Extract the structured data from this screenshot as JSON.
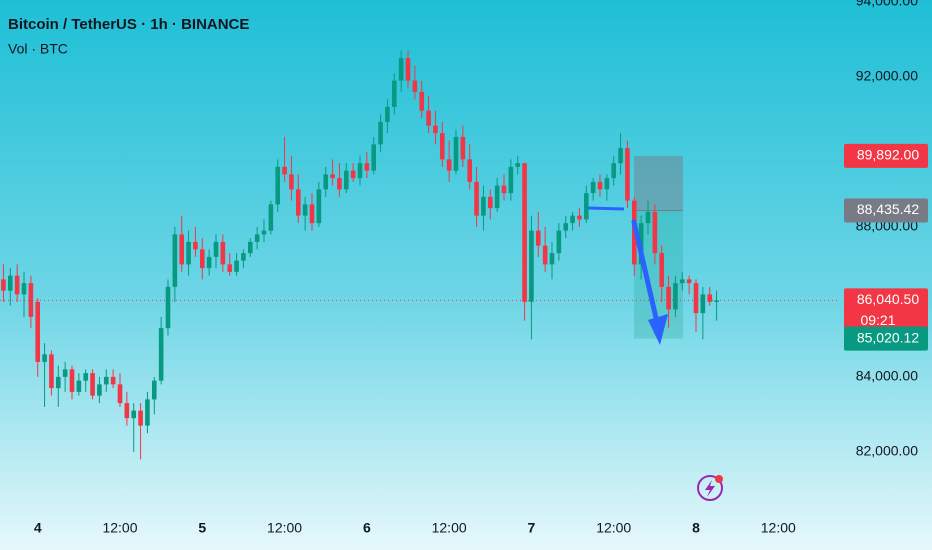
{
  "chart_data": {
    "type": "candlestick",
    "title": "Bitcoin / TetherUS · 1h · BINANCE",
    "subtitle": "Vol · BTC",
    "up_color": "#089981",
    "down_color": "#f23645",
    "xlim": [
      -5.5,
      117
    ],
    "xticks": [
      {
        "value": 0,
        "label": "4"
      },
      {
        "value": 12,
        "label": "12:00"
      },
      {
        "value": 24,
        "label": "5"
      },
      {
        "value": 36,
        "label": "12:00"
      },
      {
        "value": 48,
        "label": "6"
      },
      {
        "value": 60,
        "label": "12:00"
      },
      {
        "value": 72,
        "label": "7"
      },
      {
        "value": 84,
        "label": "12:00"
      },
      {
        "value": 96,
        "label": "8"
      },
      {
        "value": 108,
        "label": "12:00"
      }
    ],
    "ylim": [
      80450,
      94050
    ],
    "yticks": [
      {
        "value": 94000,
        "label": "94,000.00"
      },
      {
        "value": 92000,
        "label": "92,000.00"
      },
      {
        "value": 88000,
        "label": "88,000.00"
      },
      {
        "value": 84000,
        "label": "84,000.00"
      },
      {
        "value": 82000,
        "label": "82,000.00"
      }
    ],
    "price_labels": [
      {
        "value": 89892,
        "label": "89,892.00",
        "color": "#f23645"
      },
      {
        "value": 88435.42,
        "label": "88,435.42",
        "color": "#787b86"
      },
      {
        "value": 86040.5,
        "label": "86,040.50",
        "color": "#f23645"
      },
      {
        "value": 85020.12,
        "label": "85,020.12",
        "color": "#089981"
      }
    ],
    "countdown": "09:21",
    "x": [
      -5,
      -4,
      -3,
      -2,
      -1,
      0,
      1,
      2,
      3,
      4,
      5,
      6,
      7,
      8,
      9,
      10,
      11,
      12,
      13,
      14,
      15,
      16,
      17,
      18,
      19,
      20,
      21,
      22,
      23,
      24,
      25,
      26,
      27,
      28,
      29,
      30,
      31,
      32,
      33,
      34,
      35,
      36,
      37,
      38,
      39,
      40,
      41,
      42,
      43,
      44,
      45,
      46,
      47,
      48,
      49,
      50,
      51,
      52,
      53,
      54,
      55,
      56,
      57,
      58,
      59,
      60,
      61,
      62,
      63,
      64,
      65,
      66,
      67,
      68,
      69,
      70,
      71,
      72,
      73,
      74,
      75,
      76,
      77,
      78,
      79,
      80,
      81,
      82,
      83,
      84,
      85,
      86,
      87,
      88,
      89,
      90,
      91,
      92,
      93,
      94,
      95,
      96,
      97,
      98,
      99
    ],
    "candles": [
      [
        86600,
        87000,
        86000,
        86300
      ],
      [
        86300,
        86900,
        85900,
        86700
      ],
      [
        86700,
        87000,
        86000,
        86200
      ],
      [
        86200,
        86800,
        85600,
        86500
      ],
      [
        86500,
        86700,
        85300,
        85600
      ],
      [
        86000,
        86100,
        84000,
        84400
      ],
      [
        84400,
        84900,
        83200,
        84600
      ],
      [
        84600,
        84700,
        83500,
        83700
      ],
      [
        83700,
        84300,
        83200,
        84000
      ],
      [
        84000,
        84400,
        83600,
        84200
      ],
      [
        84200,
        84300,
        83400,
        83600
      ],
      [
        83600,
        84100,
        83500,
        83900
      ],
      [
        83900,
        84200,
        83600,
        84100
      ],
      [
        84100,
        84200,
        83400,
        83500
      ],
      [
        83500,
        84000,
        83300,
        83800
      ],
      [
        83800,
        84200,
        83600,
        84000
      ],
      [
        84000,
        84200,
        83700,
        83800
      ],
      [
        83800,
        84100,
        83200,
        83300
      ],
      [
        83300,
        83600,
        82700,
        82900
      ],
      [
        82900,
        83300,
        82000,
        83100
      ],
      [
        83100,
        83300,
        81800,
        82700
      ],
      [
        82700,
        83600,
        82500,
        83400
      ],
      [
        83400,
        84000,
        83000,
        83900
      ],
      [
        83900,
        85600,
        83800,
        85300
      ],
      [
        85300,
        86600,
        85100,
        86400
      ],
      [
        86400,
        88000,
        86000,
        87800
      ],
      [
        87800,
        88300,
        86800,
        87000
      ],
      [
        87000,
        87900,
        86700,
        87600
      ],
      [
        87600,
        88000,
        87200,
        87400
      ],
      [
        87400,
        87700,
        86600,
        86900
      ],
      [
        86900,
        87400,
        86700,
        87200
      ],
      [
        87200,
        87800,
        86900,
        87600
      ],
      [
        87600,
        87800,
        86800,
        87000
      ],
      [
        87000,
        87300,
        86700,
        86800
      ],
      [
        86800,
        87300,
        86700,
        87100
      ],
      [
        87100,
        87400,
        86900,
        87300
      ],
      [
        87300,
        87700,
        87200,
        87600
      ],
      [
        87600,
        88000,
        87400,
        87800
      ],
      [
        87800,
        88200,
        87600,
        87900
      ],
      [
        87900,
        88700,
        87800,
        88600
      ],
      [
        88600,
        89800,
        88400,
        89600
      ],
      [
        89600,
        90400,
        89200,
        89400
      ],
      [
        89400,
        89900,
        88700,
        89000
      ],
      [
        89000,
        89400,
        88100,
        88300
      ],
      [
        88300,
        88800,
        87900,
        88600
      ],
      [
        88600,
        88900,
        87900,
        88100
      ],
      [
        88100,
        89200,
        88000,
        89000
      ],
      [
        89000,
        89600,
        88800,
        89400
      ],
      [
        89400,
        89800,
        89100,
        89300
      ],
      [
        89300,
        89700,
        88800,
        89000
      ],
      [
        89000,
        89700,
        88900,
        89500
      ],
      [
        89500,
        89700,
        89200,
        89300
      ],
      [
        89300,
        89900,
        89100,
        89700
      ],
      [
        89700,
        90000,
        89300,
        89500
      ],
      [
        89500,
        90400,
        89400,
        90200
      ],
      [
        90200,
        91000,
        90000,
        90800
      ],
      [
        90800,
        91400,
        90500,
        91200
      ],
      [
        91200,
        92100,
        91000,
        91900
      ],
      [
        91900,
        92700,
        91600,
        92500
      ],
      [
        92500,
        92700,
        91700,
        91900
      ],
      [
        91900,
        92300,
        91400,
        91600
      ],
      [
        91600,
        91900,
        90900,
        91100
      ],
      [
        91100,
        91500,
        90500,
        90700
      ],
      [
        90700,
        91100,
        90200,
        90500
      ],
      [
        90500,
        90800,
        89600,
        89800
      ],
      [
        89800,
        90300,
        89200,
        89500
      ],
      [
        89500,
        90600,
        89400,
        90400
      ],
      [
        90400,
        90700,
        89600,
        89800
      ],
      [
        89800,
        90200,
        89000,
        89200
      ],
      [
        89200,
        89600,
        88000,
        88300
      ],
      [
        88300,
        89100,
        87900,
        88800
      ],
      [
        88800,
        89000,
        88200,
        88500
      ],
      [
        88500,
        89300,
        88400,
        89100
      ],
      [
        89100,
        89400,
        88700,
        88900
      ],
      [
        88900,
        89800,
        88700,
        89600
      ],
      [
        89600,
        89900,
        89400,
        89700
      ],
      [
        89700,
        89700,
        85500,
        86000
      ],
      [
        86000,
        88300,
        85000,
        87900
      ],
      [
        87900,
        88400,
        87200,
        87500
      ],
      [
        87500,
        88000,
        86800,
        87000
      ],
      [
        87000,
        87600,
        86600,
        87300
      ],
      [
        87300,
        88100,
        87100,
        87900
      ],
      [
        87900,
        88300,
        87700,
        88100
      ],
      [
        88100,
        88400,
        87900,
        88300
      ],
      [
        88300,
        88500,
        88000,
        88200
      ],
      [
        88200,
        89100,
        88100,
        88900
      ],
      [
        88900,
        89300,
        88700,
        89200
      ],
      [
        89200,
        89400,
        88800,
        89000
      ],
      [
        89000,
        89400,
        88700,
        89300
      ],
      [
        89300,
        89900,
        89100,
        89700
      ],
      [
        89700,
        90500,
        89400,
        90100
      ],
      [
        90100,
        90300,
        88500,
        88700
      ],
      [
        88700,
        88800,
        86700,
        87000
      ],
      [
        87000,
        88300,
        86600,
        88100
      ],
      [
        88100,
        88700,
        87800,
        88400
      ],
      [
        88400,
        88600,
        87000,
        87300
      ],
      [
        87300,
        87500,
        86000,
        86400
      ],
      [
        86400,
        86700,
        85300,
        85800
      ],
      [
        85800,
        86700,
        85600,
        86500
      ],
      [
        86500,
        86800,
        86300,
        86600
      ],
      [
        86600,
        86700,
        86200,
        86500
      ],
      [
        86500,
        86600,
        85200,
        85700
      ],
      [
        85700,
        86400,
        85000,
        86200
      ],
      [
        86200,
        86400,
        85900,
        86000
      ],
      [
        86000,
        86300,
        85500,
        86040.5
      ]
    ]
  }
}
